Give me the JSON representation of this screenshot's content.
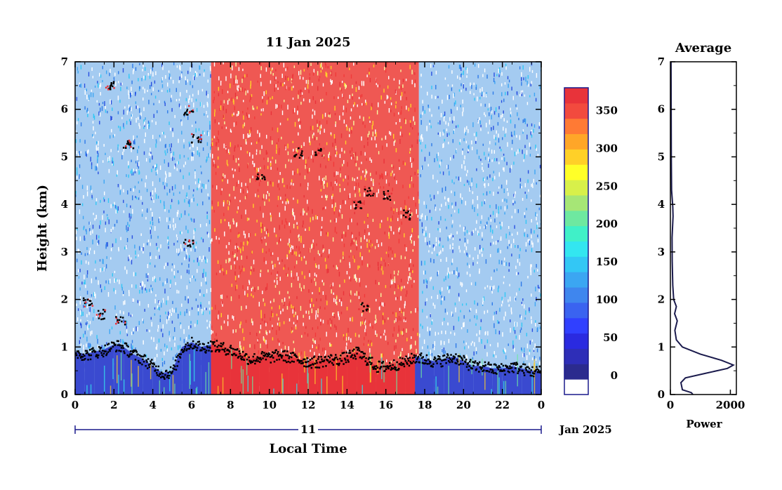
{
  "chart_data": [
    {
      "type": "heatmap",
      "title": "11 Jan 2025",
      "xlabel": "Local Time",
      "ylabel": "Height (km)",
      "x_ticks": [
        "0",
        "2",
        "4",
        "6",
        "8",
        "10",
        "12",
        "14",
        "16",
        "18",
        "20",
        "22",
        "0"
      ],
      "y_ticks": [
        "0",
        "1",
        "2",
        "3",
        "4",
        "5",
        "6",
        "7"
      ],
      "xlim": [
        0,
        24
      ],
      "ylim": [
        0,
        7
      ],
      "date_axis": {
        "day_label": "11",
        "month_label": "Jan 2025"
      },
      "colorbar": {
        "ticks": [
          "0",
          "50",
          "100",
          "150",
          "200",
          "250",
          "300",
          "350"
        ],
        "range": [
          -25,
          380
        ],
        "colors": [
          "#ffffff",
          "#2b2b8e",
          "#2e2eb8",
          "#2a2ae0",
          "#3040ff",
          "#3a63f0",
          "#3f86ee",
          "#3ba6f2",
          "#33c7f5",
          "#33e6f0",
          "#40f0c8",
          "#6ee8a0",
          "#a6e676",
          "#d8f04a",
          "#ffff28",
          "#ffd028",
          "#ffa628",
          "#ff7a34",
          "#f24a3e",
          "#e8333a"
        ]
      },
      "background_regions": [
        {
          "x_start": 0,
          "x_end": 7,
          "class": "low"
        },
        {
          "x_start": 7,
          "x_end": 17.7,
          "class": "high"
        },
        {
          "x_start": 17.7,
          "x_end": 24,
          "class": "low"
        }
      ],
      "boundary_layer_top_km": [
        {
          "t": 0,
          "h": 0.9
        },
        {
          "t": 0.5,
          "h": 0.85
        },
        {
          "t": 1,
          "h": 0.9
        },
        {
          "t": 1.5,
          "h": 0.95
        },
        {
          "t": 2,
          "h": 1.05
        },
        {
          "t": 2.5,
          "h": 1.0
        },
        {
          "t": 3,
          "h": 0.85
        },
        {
          "t": 3.5,
          "h": 0.75
        },
        {
          "t": 4,
          "h": 0.6
        },
        {
          "t": 4.5,
          "h": 0.45
        },
        {
          "t": 5,
          "h": 0.5
        },
        {
          "t": 5.5,
          "h": 1.0
        },
        {
          "t": 6,
          "h": 1.1
        },
        {
          "t": 6.5,
          "h": 1.0
        },
        {
          "t": 7,
          "h": 1.05
        },
        {
          "t": 7.5,
          "h": 1.0
        },
        {
          "t": 8,
          "h": 0.95
        },
        {
          "t": 8.5,
          "h": 0.85
        },
        {
          "t": 9,
          "h": 0.75
        },
        {
          "t": 9.5,
          "h": 0.8
        },
        {
          "t": 10,
          "h": 0.8
        },
        {
          "t": 10.5,
          "h": 0.85
        },
        {
          "t": 11,
          "h": 0.8
        },
        {
          "t": 11.5,
          "h": 0.75
        },
        {
          "t": 12,
          "h": 0.7
        },
        {
          "t": 12.5,
          "h": 0.7
        },
        {
          "t": 13,
          "h": 0.75
        },
        {
          "t": 13.5,
          "h": 0.75
        },
        {
          "t": 14,
          "h": 0.8
        },
        {
          "t": 14.5,
          "h": 0.9
        },
        {
          "t": 15,
          "h": 0.75
        },
        {
          "t": 15.5,
          "h": 0.6
        },
        {
          "t": 16,
          "h": 0.6
        },
        {
          "t": 16.5,
          "h": 0.65
        },
        {
          "t": 17,
          "h": 0.7
        },
        {
          "t": 17.5,
          "h": 0.8
        },
        {
          "t": 18,
          "h": 0.75
        },
        {
          "t": 18.5,
          "h": 0.7
        },
        {
          "t": 19,
          "h": 0.75
        },
        {
          "t": 19.5,
          "h": 0.8
        },
        {
          "t": 20,
          "h": 0.7
        },
        {
          "t": 20.5,
          "h": 0.6
        },
        {
          "t": 21,
          "h": 0.6
        },
        {
          "t": 21.5,
          "h": 0.55
        },
        {
          "t": 22,
          "h": 0.55
        },
        {
          "t": 22.5,
          "h": 0.6
        },
        {
          "t": 23,
          "h": 0.55
        },
        {
          "t": 23.5,
          "h": 0.5
        },
        {
          "t": 24,
          "h": 0.5
        }
      ],
      "elevated_features": [
        {
          "t": 1.8,
          "h": 6.5
        },
        {
          "t": 2.7,
          "h": 5.3
        },
        {
          "t": 5.8,
          "h": 6.0
        },
        {
          "t": 6.2,
          "h": 5.4
        },
        {
          "t": 5.8,
          "h": 3.2
        },
        {
          "t": 9.5,
          "h": 4.6
        },
        {
          "t": 11.5,
          "h": 5.1
        },
        {
          "t": 12.5,
          "h": 5.15
        },
        {
          "t": 14.5,
          "h": 4.0
        },
        {
          "t": 15.1,
          "h": 4.3
        },
        {
          "t": 16.0,
          "h": 4.2
        },
        {
          "t": 17.0,
          "h": 3.8
        },
        {
          "t": 14.8,
          "h": 1.85
        },
        {
          "t": 0.6,
          "h": 1.95
        },
        {
          "t": 1.3,
          "h": 1.7
        },
        {
          "t": 2.3,
          "h": 1.55
        }
      ]
    },
    {
      "type": "line",
      "title": "Average",
      "xlabel": "Power",
      "ylabel": "",
      "x_ticks": [
        "0",
        "2000"
      ],
      "y_ticks": [
        "0",
        "1",
        "2",
        "3",
        "4",
        "5",
        "6",
        "7"
      ],
      "xlim": [
        0,
        2200
      ],
      "ylim": [
        0,
        7
      ],
      "series": [
        {
          "points": [
            {
              "power": 750,
              "height": 0.0
            },
            {
              "power": 700,
              "height": 0.04
            },
            {
              "power": 400,
              "height": 0.1
            },
            {
              "power": 350,
              "height": 0.25
            },
            {
              "power": 500,
              "height": 0.35
            },
            {
              "power": 1200,
              "height": 0.45
            },
            {
              "power": 1900,
              "height": 0.55
            },
            {
              "power": 2100,
              "height": 0.62
            },
            {
              "power": 1700,
              "height": 0.72
            },
            {
              "power": 1000,
              "height": 0.85
            },
            {
              "power": 400,
              "height": 1.0
            },
            {
              "power": 200,
              "height": 1.15
            },
            {
              "power": 150,
              "height": 1.35
            },
            {
              "power": 230,
              "height": 1.55
            },
            {
              "power": 140,
              "height": 1.7
            },
            {
              "power": 200,
              "height": 1.85
            },
            {
              "power": 110,
              "height": 2.0
            },
            {
              "power": 80,
              "height": 2.3
            },
            {
              "power": 60,
              "height": 2.8
            },
            {
              "power": 55,
              "height": 3.3
            },
            {
              "power": 90,
              "height": 3.75
            },
            {
              "power": 80,
              "height": 3.95
            },
            {
              "power": 40,
              "height": 4.3
            },
            {
              "power": 30,
              "height": 5.0
            },
            {
              "power": 25,
              "height": 6.0
            },
            {
              "power": 20,
              "height": 7.0
            }
          ]
        }
      ]
    }
  ]
}
